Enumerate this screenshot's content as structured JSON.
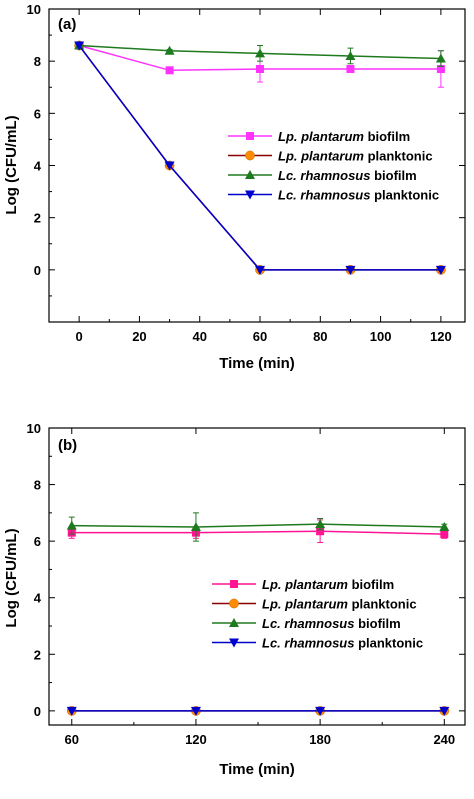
{
  "chart_data": [
    {
      "type": "line",
      "panel_label": "(a)",
      "xlabel": "Time (min)",
      "ylabel": "Log (CFU/mL)",
      "x": [
        0,
        30,
        60,
        90,
        120
      ],
      "xlim": [
        -10,
        128
      ],
      "ylim": [
        -2,
        10
      ],
      "xticks": [
        0,
        20,
        40,
        60,
        80,
        100,
        120
      ],
      "yticks": [
        0,
        2,
        4,
        6,
        8,
        10
      ],
      "legend_position": "center-right",
      "grid": false,
      "series": [
        {
          "name": "Lp. plantarum",
          "name_suffix": "biofilm",
          "color": "#ff33ff",
          "marker": "square",
          "values": [
            8.6,
            7.65,
            7.7,
            7.7,
            7.7
          ],
          "errors": [
            0.05,
            0.05,
            0.5,
            0.1,
            0.7
          ]
        },
        {
          "name": "Lp. plantarum",
          "name_suffix": "planktonic",
          "color": "#8b0000",
          "marker_fill": "#ff8c00",
          "marker": "circle",
          "values": [
            8.6,
            4.0,
            0,
            0,
            0
          ],
          "errors": [
            0,
            0,
            0,
            0,
            0
          ]
        },
        {
          "name": "Lc. rhamnosus",
          "name_suffix": "biofilm",
          "color": "#1e7a1e",
          "marker": "triangle-up",
          "values": [
            8.6,
            8.4,
            8.3,
            8.2,
            8.1
          ],
          "errors": [
            0.05,
            0.05,
            0.3,
            0.3,
            0.3
          ]
        },
        {
          "name": "Lc. rhamnosus",
          "name_suffix": "planktonic",
          "color": "#0000cc",
          "marker": "triangle-down",
          "values": [
            8.6,
            4.0,
            0,
            0,
            0
          ],
          "errors": [
            0,
            0,
            0,
            0,
            0
          ]
        }
      ]
    },
    {
      "type": "line",
      "panel_label": "(b)",
      "xlabel": "Time (min)",
      "ylabel": "Log (CFU/mL)",
      "x": [
        60,
        120,
        180,
        240
      ],
      "xlim": [
        49,
        250
      ],
      "ylim": [
        -0.5,
        10
      ],
      "xticks": [
        60,
        120,
        180,
        240
      ],
      "yticks": [
        0,
        2,
        4,
        6,
        8,
        10
      ],
      "legend_position": "center",
      "grid": false,
      "series": [
        {
          "name": "Lp. plantarum",
          "name_suffix": "biofilm",
          "color": "#ff1493",
          "marker": "square",
          "values": [
            6.3,
            6.3,
            6.35,
            6.25
          ],
          "errors": [
            0.2,
            0.2,
            0.4,
            0.15
          ]
        },
        {
          "name": "Lp. plantarum",
          "name_suffix": "planktonic",
          "color": "#8b0000",
          "marker_fill": "#ff8c00",
          "marker": "circle",
          "values": [
            0,
            0,
            0,
            0
          ],
          "errors": [
            0,
            0,
            0,
            0
          ]
        },
        {
          "name": "Lc. rhamnosus",
          "name_suffix": "biofilm",
          "color": "#1e7a1e",
          "marker": "triangle-up",
          "values": [
            6.55,
            6.5,
            6.6,
            6.5
          ],
          "errors": [
            0.3,
            0.5,
            0.2,
            0.1
          ]
        },
        {
          "name": "Lc. rhamnosus",
          "name_suffix": "planktonic",
          "color": "#0000cc",
          "marker": "triangle-down",
          "values": [
            0,
            0,
            0,
            0
          ],
          "errors": [
            0,
            0,
            0,
            0
          ]
        }
      ]
    }
  ]
}
